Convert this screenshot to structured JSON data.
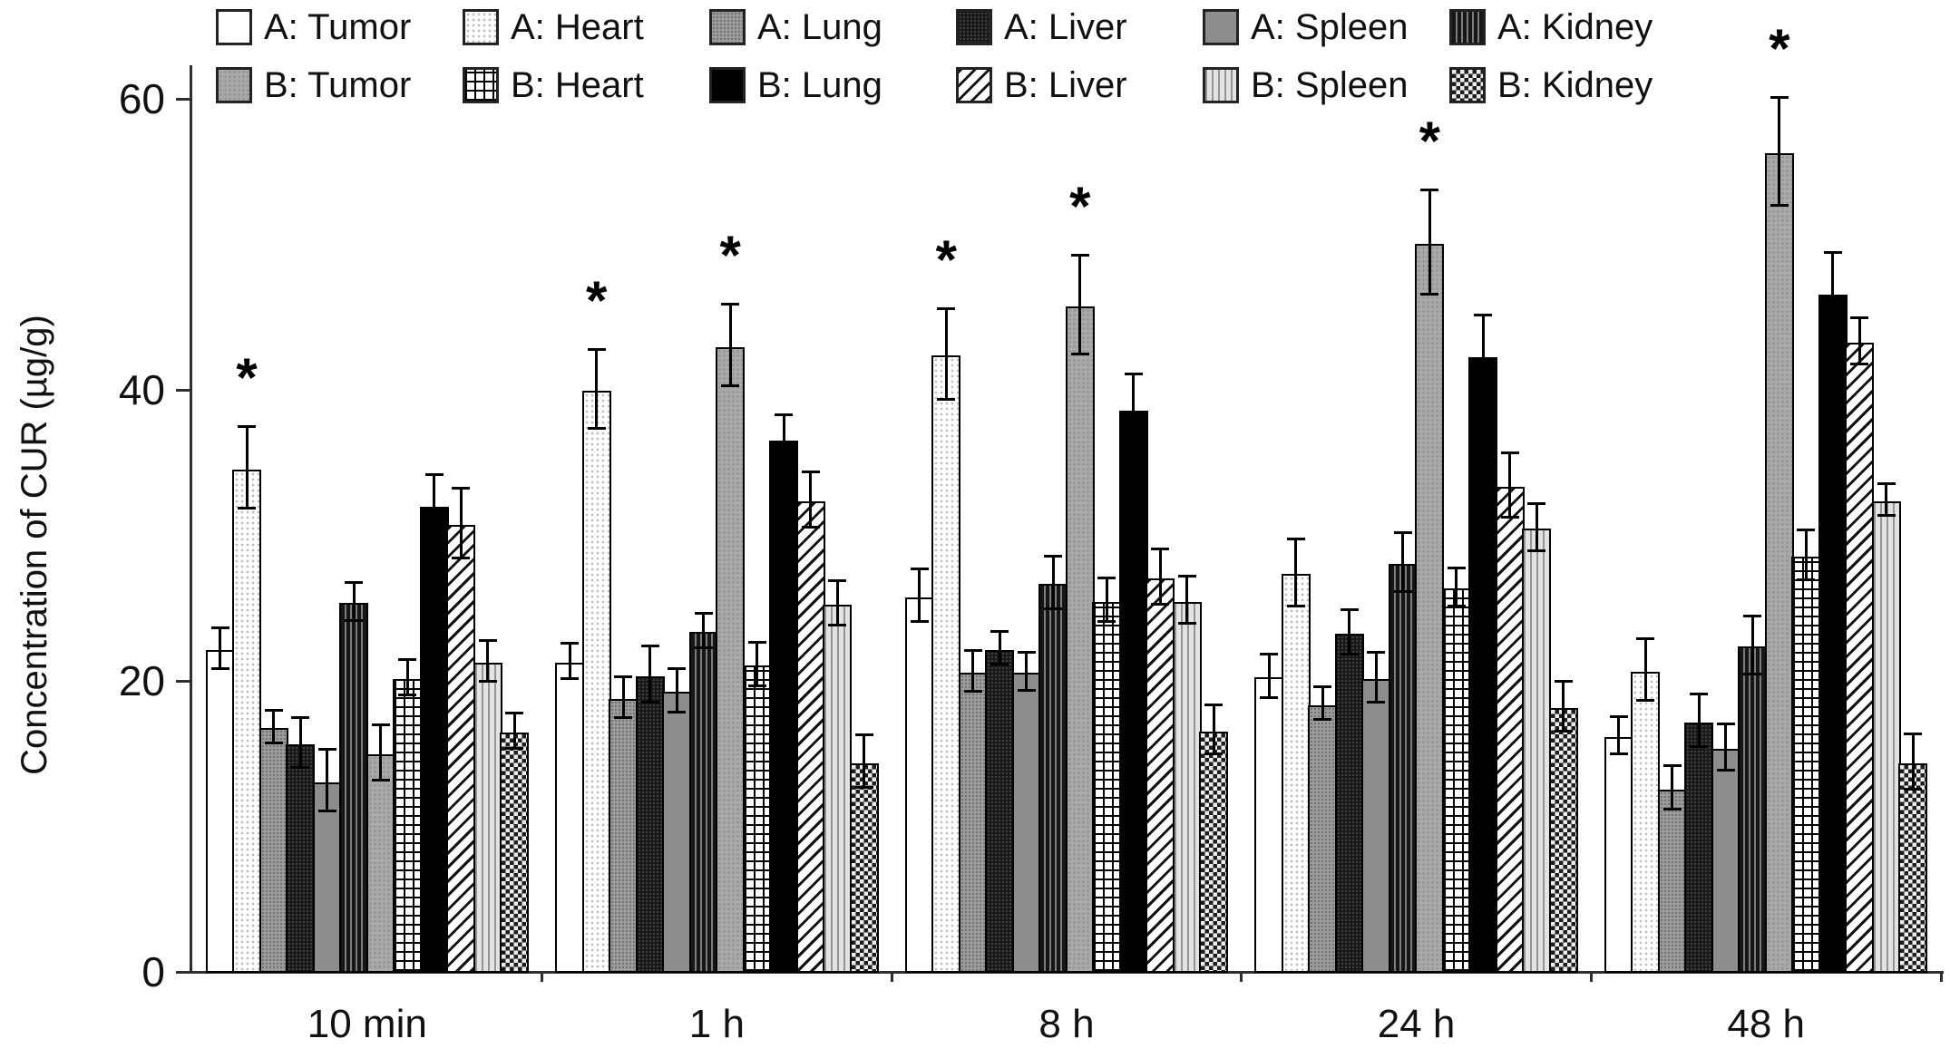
{
  "figure": {
    "y_axis_title": "Concentration of CUR (µg/g)",
    "significance_marker": "*"
  },
  "chart_data": {
    "type": "bar",
    "title": "",
    "xlabel": "",
    "ylabel": "Concentration of CUR (µg/g)",
    "categories": [
      "10 min",
      "1 h",
      "8 h",
      "24 h",
      "48 h"
    ],
    "ylim": [
      0,
      62
    ],
    "yticks": [
      0,
      20,
      40,
      60
    ],
    "grid": false,
    "legend_position": "top, two rows",
    "error_bars": true,
    "series": [
      {
        "name": "A: Tumor",
        "pattern": "white",
        "values": [
          22.2,
          21.3,
          25.8,
          20.3,
          16.2
        ],
        "errors": [
          1.5,
          1.3,
          1.9,
          1.6,
          1.4
        ],
        "sig": [
          false,
          false,
          false,
          false,
          false
        ]
      },
      {
        "name": "A: Heart",
        "pattern": "light-stipple",
        "values": [
          34.6,
          40.0,
          42.4,
          27.4,
          20.7
        ],
        "errors": [
          2.9,
          2.8,
          3.2,
          2.4,
          2.2
        ],
        "sig": [
          true,
          true,
          true,
          false,
          false
        ]
      },
      {
        "name": "A: Lung",
        "pattern": "gray-dither",
        "values": [
          16.8,
          18.8,
          20.6,
          18.4,
          12.6
        ],
        "errors": [
          1.2,
          1.5,
          1.5,
          1.2,
          1.6
        ],
        "sig": [
          false,
          false,
          false,
          false,
          false
        ]
      },
      {
        "name": "A: Liver",
        "pattern": "dark-stipple",
        "values": [
          15.7,
          20.4,
          22.2,
          23.3,
          17.2
        ],
        "errors": [
          1.8,
          2.0,
          1.2,
          1.6,
          1.9
        ],
        "sig": [
          false,
          false,
          false,
          false,
          false
        ]
      },
      {
        "name": "A: Spleen",
        "pattern": "solid-gray",
        "values": [
          13.1,
          19.3,
          20.6,
          20.2,
          15.4
        ],
        "errors": [
          2.2,
          1.6,
          1.4,
          1.8,
          1.7
        ],
        "sig": [
          false,
          false,
          false,
          false,
          false
        ]
      },
      {
        "name": "A: Kidney",
        "pattern": "dark-vstripe",
        "values": [
          25.4,
          23.4,
          26.7,
          28.1,
          22.4
        ],
        "errors": [
          1.4,
          1.3,
          1.9,
          2.1,
          2.1
        ],
        "sig": [
          false,
          false,
          false,
          false,
          false
        ]
      },
      {
        "name": "B: Tumor",
        "pattern": "gray-stipple",
        "values": [
          15.0,
          43.0,
          45.8,
          50.1,
          56.3
        ],
        "errors": [
          2.0,
          2.9,
          3.5,
          3.7,
          3.8
        ],
        "sig": [
          false,
          true,
          true,
          true,
          true
        ]
      },
      {
        "name": "B: Heart",
        "pattern": "grid",
        "values": [
          20.2,
          21.1,
          25.5,
          26.4,
          28.6
        ],
        "errors": [
          1.3,
          1.6,
          1.6,
          1.4,
          1.8
        ],
        "sig": [
          false,
          false,
          false,
          false,
          false
        ]
      },
      {
        "name": "B: Lung",
        "pattern": "solid-black",
        "values": [
          32.0,
          36.6,
          38.6,
          42.3,
          46.6
        ],
        "errors": [
          2.2,
          1.7,
          2.5,
          2.9,
          2.9
        ],
        "sig": [
          false,
          false,
          false,
          false,
          false
        ]
      },
      {
        "name": "B: Liver",
        "pattern": "diag-hatch",
        "values": [
          30.8,
          32.4,
          27.1,
          33.4,
          43.3
        ],
        "errors": [
          2.5,
          2.0,
          2.0,
          2.3,
          1.7
        ],
        "sig": [
          false,
          false,
          false,
          false,
          false
        ]
      },
      {
        "name": "B: Spleen",
        "pattern": "light-vstripe",
        "values": [
          21.3,
          25.3,
          25.5,
          30.5,
          32.4
        ],
        "errors": [
          1.5,
          1.6,
          1.7,
          1.7,
          1.2
        ],
        "sig": [
          false,
          false,
          false,
          false,
          false
        ]
      },
      {
        "name": "B: Kidney",
        "pattern": "checker",
        "values": [
          16.5,
          14.4,
          16.6,
          18.2,
          14.4
        ],
        "errors": [
          1.3,
          1.9,
          1.8,
          1.8,
          2.0
        ],
        "sig": [
          false,
          false,
          false,
          false,
          false
        ]
      }
    ]
  }
}
